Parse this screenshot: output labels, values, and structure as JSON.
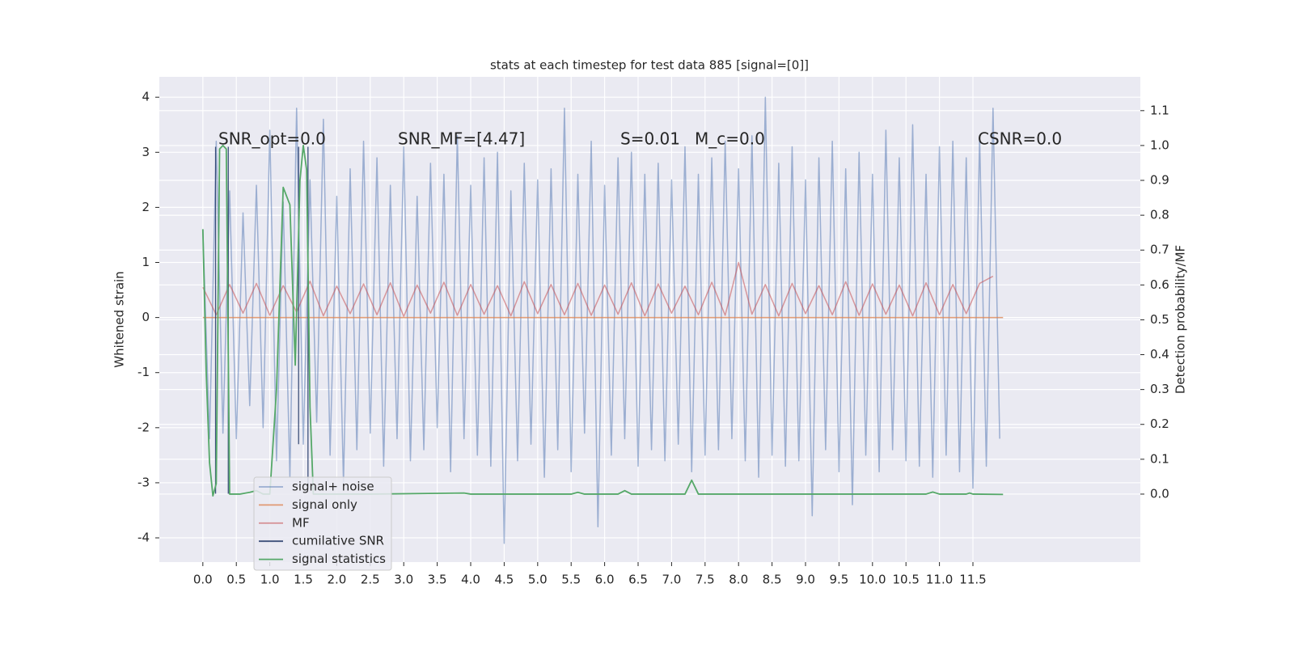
{
  "chart_data": {
    "type": "line",
    "title": "stats at each timestep for test data 885 [signal=[0]]",
    "ylabel": "Whitened strain",
    "y2label": "Detection probability/MF",
    "annotations": [
      "SNR_opt=0.0",
      "SNR_MF=[4.47]",
      "S=0.01",
      "M_c=0.0",
      "CSNR=0.0"
    ],
    "xlim": [
      -0.65,
      14.0
    ],
    "ylim": [
      -4.44,
      4.37
    ],
    "y2lim": [
      -0.195,
      1.197
    ],
    "xticks": [
      {
        "value": 0,
        "label": "0.0"
      },
      0.5,
      {
        "value": 1,
        "label": "1.0"
      },
      1.5,
      {
        "value": 2,
        "label": "2.0"
      },
      2.5,
      {
        "value": 3,
        "label": "3.0"
      },
      3.5,
      {
        "value": 4,
        "label": "4.0"
      },
      4.5,
      {
        "value": 5,
        "label": "5.0"
      },
      5.5,
      {
        "value": 6,
        "label": "6.0"
      },
      6.5,
      {
        "value": 7,
        "label": "7.0"
      },
      7.5,
      {
        "value": 8,
        "label": "8.0"
      },
      8.5,
      {
        "value": 9,
        "label": "9.0"
      },
      9.5,
      {
        "value": 10,
        "label": "10.0"
      },
      10.5,
      {
        "value": 11,
        "label": "11.0"
      },
      11.5
    ],
    "yticks": [
      -4,
      -3,
      -2,
      -1,
      0,
      1,
      2,
      3,
      4
    ],
    "y2ticks": [
      {
        "value": 0,
        "label": "0.0"
      },
      0.1,
      0.2,
      0.3,
      0.4,
      0.5,
      0.6,
      0.7,
      0.8,
      0.9,
      {
        "value": 1,
        "label": "1.0"
      },
      1.1
    ],
    "grid": true,
    "legend": "lower left",
    "series": [
      {
        "name": "signal+ noise",
        "color": "#4c72b0",
        "x": [
          0.0,
          0.1,
          0.2,
          0.3,
          0.4,
          0.5,
          0.6,
          0.7,
          0.8,
          0.9,
          1.0,
          1.1,
          1.2,
          1.3,
          1.4,
          1.5,
          1.6,
          1.7,
          1.8,
          1.9,
          2.0,
          2.1,
          2.2,
          2.3,
          2.4,
          2.5,
          2.6,
          2.7,
          2.8,
          2.9,
          3.0,
          3.1,
          3.2,
          3.3,
          3.4,
          3.5,
          3.6,
          3.7,
          3.8,
          3.9,
          4.0,
          4.1,
          4.2,
          4.3,
          4.4,
          4.5,
          4.6,
          4.7,
          4.8,
          4.9,
          5.0,
          5.1,
          5.2,
          5.3,
          5.4,
          5.5,
          5.6,
          5.7,
          5.8,
          5.9,
          6.0,
          6.1,
          6.2,
          6.3,
          6.4,
          6.5,
          6.6,
          6.7,
          6.8,
          6.9,
          7.0,
          7.1,
          7.2,
          7.3,
          7.4,
          7.5,
          7.6,
          7.7,
          7.8,
          7.9,
          8.0,
          8.1,
          8.2,
          8.3,
          8.4,
          8.5,
          8.6,
          8.7,
          8.8,
          8.9,
          9.0,
          9.1,
          9.2,
          9.3,
          9.4,
          9.5,
          9.6,
          9.7,
          9.8,
          9.9,
          10.0,
          10.1,
          10.2,
          10.3,
          10.4,
          10.5,
          10.6,
          10.7,
          10.8,
          10.9,
          11.0,
          11.1,
          11.2,
          11.3,
          11.4,
          11.5,
          11.6,
          11.7,
          11.8,
          11.9
        ],
        "values": [
          1.6,
          -2.2,
          3.2,
          -2.1,
          2.3,
          -2.2,
          1.9,
          -1.6,
          2.4,
          -2.0,
          3.4,
          -2.6,
          2.1,
          -2.9,
          3.8,
          -2.3,
          2.5,
          -1.9,
          3.6,
          -2.5,
          2.2,
          -3.0,
          2.7,
          -2.4,
          3.2,
          -2.1,
          2.9,
          -2.7,
          2.4,
          -2.2,
          3.1,
          -2.6,
          2.2,
          -2.4,
          2.8,
          -2.0,
          2.6,
          -2.8,
          3.3,
          -2.2,
          2.4,
          -2.5,
          2.9,
          -2.7,
          3.0,
          -4.1,
          2.3,
          -2.6,
          2.8,
          -2.3,
          2.5,
          -2.9,
          2.7,
          -2.4,
          3.8,
          -2.8,
          2.6,
          -2.1,
          3.2,
          -3.8,
          2.4,
          -2.5,
          2.9,
          -2.2,
          3.0,
          -2.7,
          2.6,
          -2.4,
          2.8,
          -2.6,
          2.5,
          -2.3,
          3.1,
          -2.8,
          2.6,
          -2.5,
          2.9,
          -2.4,
          3.2,
          -2.2,
          2.7,
          -2.6,
          3.3,
          -2.9,
          4.0,
          -2.5,
          2.8,
          -2.7,
          3.1,
          -2.6,
          2.5,
          -3.6,
          2.9,
          -2.4,
          3.2,
          -2.8,
          2.7,
          -3.4,
          3.0,
          -2.5,
          2.6,
          -2.8,
          3.4,
          -2.4,
          2.9,
          -2.6,
          3.5,
          -2.7,
          2.6,
          -2.9,
          3.1,
          -2.5,
          3.2,
          -2.8,
          2.9,
          -3.1,
          3.3,
          -2.7,
          3.8,
          -2.2
        ]
      },
      {
        "name": "signal only",
        "color": "#dd8452",
        "x": [
          0.0,
          11.95
        ],
        "values": [
          0,
          0
        ]
      },
      {
        "name": "MF",
        "color": "#c44e52",
        "x": [
          0.0,
          0.2,
          0.4,
          0.6,
          0.8,
          1.0,
          1.2,
          1.4,
          1.6,
          1.8,
          2.0,
          2.2,
          2.4,
          2.6,
          2.8,
          3.0,
          3.2,
          3.4,
          3.6,
          3.8,
          4.0,
          4.2,
          4.4,
          4.6,
          4.8,
          5.0,
          5.2,
          5.4,
          5.6,
          5.8,
          6.0,
          6.2,
          6.4,
          6.6,
          6.8,
          7.0,
          7.2,
          7.4,
          7.6,
          7.8,
          8.0,
          8.2,
          8.4,
          8.6,
          8.8,
          9.0,
          9.2,
          9.4,
          9.6,
          9.8,
          10.0,
          10.2,
          10.4,
          10.6,
          10.8,
          11.0,
          11.2,
          11.4,
          11.6,
          11.8
        ],
        "values": [
          0.55,
          0.05,
          0.6,
          0.08,
          0.62,
          0.04,
          0.58,
          0.1,
          0.66,
          0.03,
          0.57,
          0.07,
          0.61,
          0.05,
          0.63,
          0.02,
          0.59,
          0.08,
          0.64,
          0.04,
          0.6,
          0.06,
          0.58,
          0.03,
          0.65,
          0.07,
          0.6,
          0.05,
          0.62,
          0.04,
          0.59,
          0.06,
          0.63,
          0.03,
          0.61,
          0.08,
          0.57,
          0.05,
          0.64,
          0.04,
          1.0,
          0.06,
          0.6,
          0.03,
          0.62,
          0.07,
          0.58,
          0.05,
          0.65,
          0.04,
          0.61,
          0.06,
          0.59,
          0.03,
          0.63,
          0.05,
          0.6,
          0.07,
          0.62,
          0.75
        ]
      },
      {
        "name": "cumilative SNR",
        "color": "#2a3f6e",
        "x": [
          0.19,
          0.19,
          null,
          0.38,
          0.38,
          null,
          1.43,
          1.43,
          null,
          1.57,
          1.57
        ],
        "values": [
          3.1,
          -3.2,
          null,
          3.1,
          -3.2,
          null,
          3.1,
          -2.3,
          null,
          3.1,
          -3.1
        ]
      },
      {
        "name": "signal statistics",
        "color": "#55a868",
        "axis": "y2",
        "x": [
          0.0,
          0.05,
          0.1,
          0.15,
          0.2,
          0.25,
          0.3,
          0.35,
          0.4,
          0.45,
          0.55,
          0.7,
          0.8,
          0.9,
          1.0,
          1.1,
          1.2,
          1.3,
          1.38,
          1.45,
          1.5,
          1.55,
          1.6,
          1.65,
          1.7,
          2.5,
          3.9,
          4.0,
          5.5,
          5.6,
          5.7,
          6.2,
          6.3,
          6.4,
          7.2,
          7.3,
          7.4,
          7.5,
          10.8,
          10.9,
          11.0,
          11.4,
          11.45,
          11.5,
          11.95
        ],
        "values": [
          0.76,
          0.35,
          0.09,
          -0.005,
          0.03,
          0.99,
          1.0,
          0.99,
          0.0,
          0.0,
          0.0,
          0.005,
          0.01,
          0.0,
          0.0,
          0.3,
          0.88,
          0.83,
          0.37,
          0.9,
          1.0,
          0.93,
          0.25,
          0.0,
          0.0,
          0.0,
          0.003,
          0.0,
          0.0,
          0.005,
          0.0,
          0.0,
          0.01,
          0.0,
          0.0,
          0.04,
          0.0,
          0.0,
          0.0,
          0.006,
          0.0,
          0.0,
          0.003,
          0.0,
          -0.001
        ]
      }
    ]
  }
}
